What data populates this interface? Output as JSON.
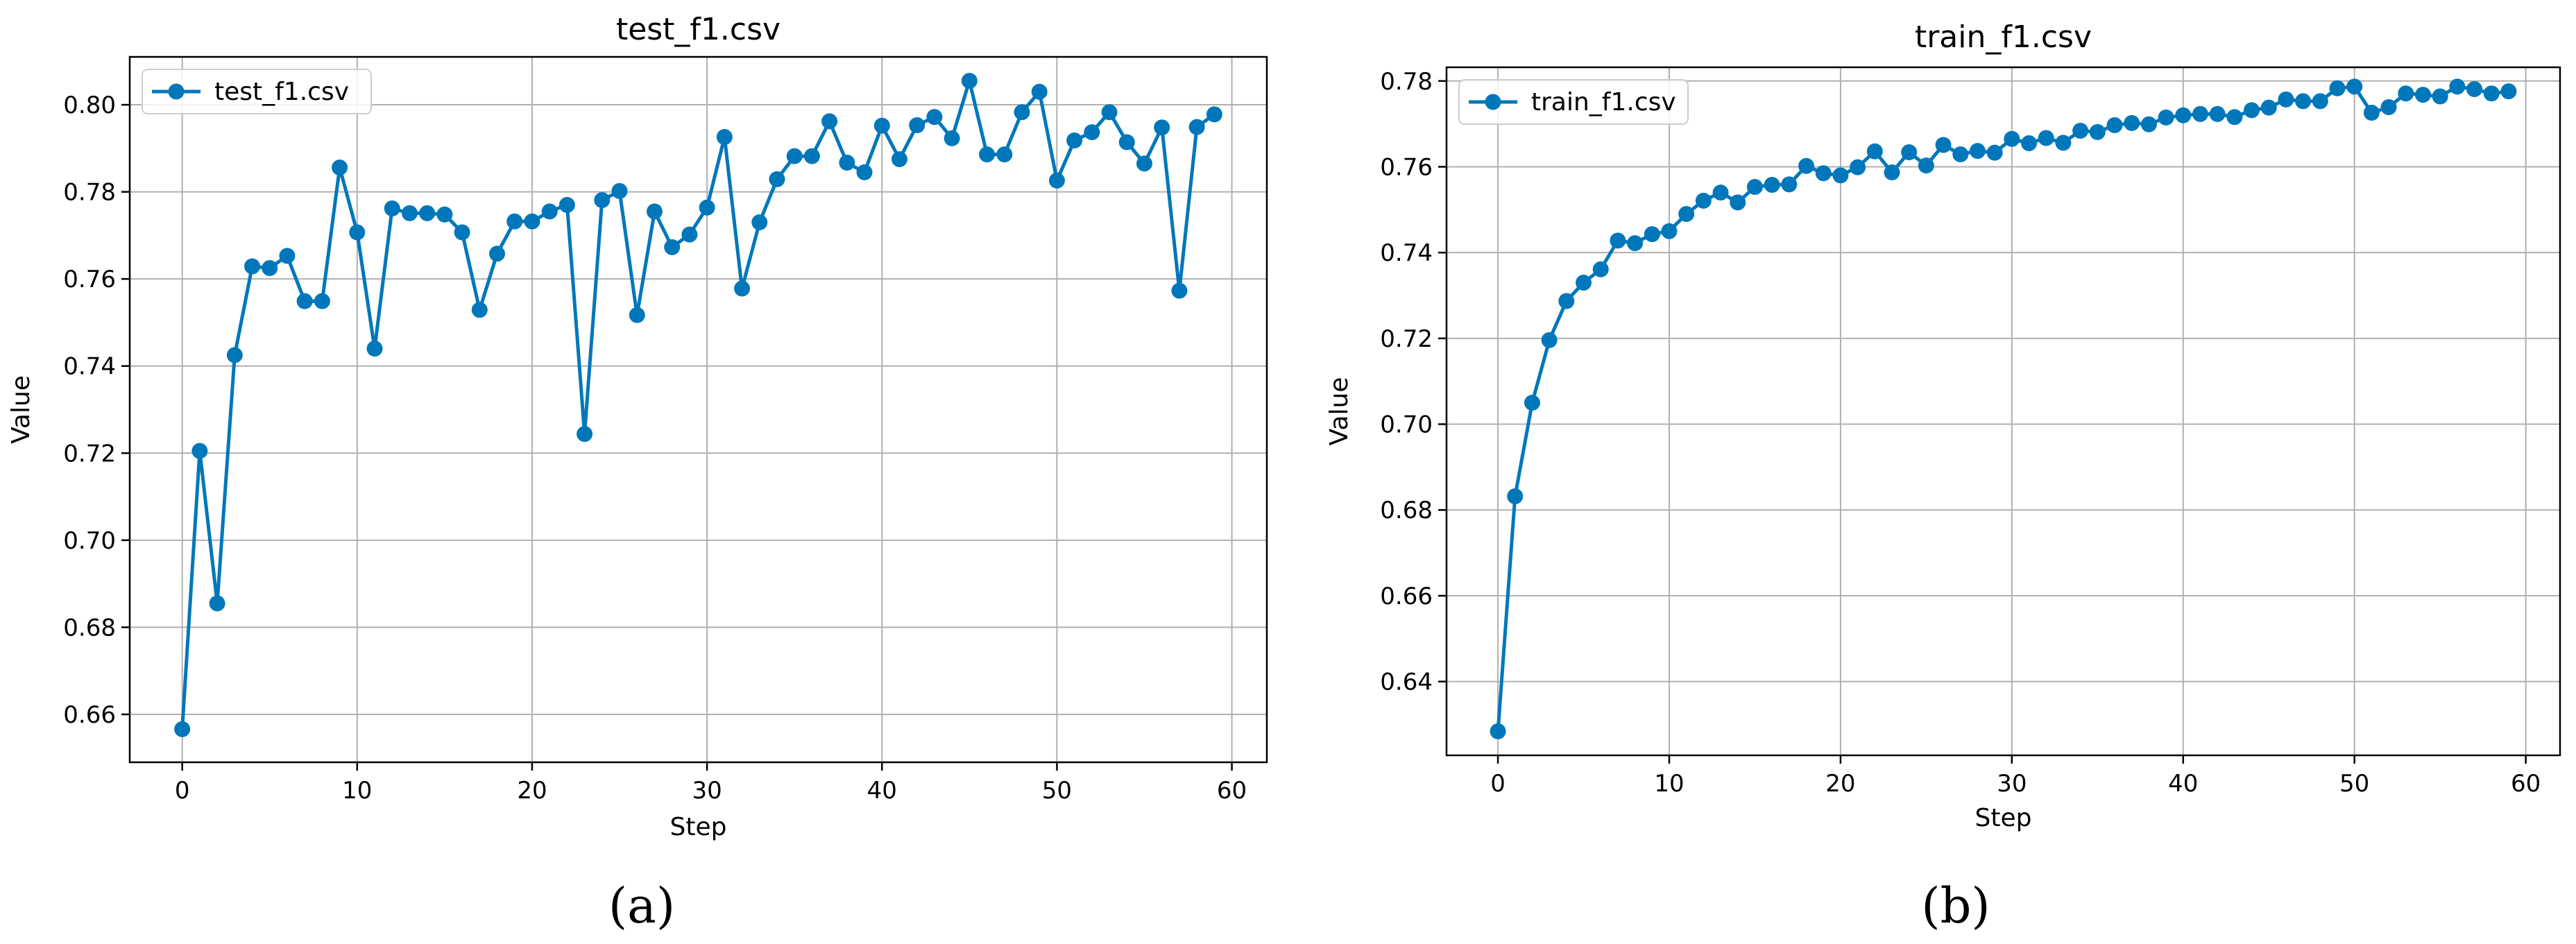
{
  "colors": {
    "series": "#0077bb",
    "grid": "#b0b0b0",
    "frame": "#000000"
  },
  "chart_data": [
    {
      "type": "line",
      "title": "test_f1.csv",
      "xlabel": "Step",
      "ylabel": "Value",
      "caption": "(a)",
      "grid": true,
      "legend_position": "top-left",
      "xlim": [
        -3,
        62
      ],
      "ylim": [
        0.649,
        0.811
      ],
      "xticks": [
        0,
        10,
        20,
        30,
        40,
        50,
        60
      ],
      "yticks": [
        0.66,
        0.68,
        0.7,
        0.72,
        0.74,
        0.76,
        0.78,
        0.8
      ],
      "ytick_labels": [
        "0.66",
        "0.68",
        "0.70",
        "0.72",
        "0.74",
        "0.76",
        "0.78",
        "0.80"
      ],
      "series": [
        {
          "name": "test_f1.csv",
          "x": [
            0,
            1,
            2,
            3,
            4,
            5,
            6,
            7,
            8,
            9,
            10,
            11,
            12,
            13,
            14,
            15,
            16,
            17,
            18,
            19,
            20,
            21,
            22,
            23,
            24,
            25,
            26,
            27,
            28,
            29,
            30,
            31,
            32,
            33,
            34,
            35,
            36,
            37,
            38,
            39,
            40,
            41,
            42,
            43,
            44,
            45,
            46,
            47,
            48,
            49,
            50,
            51,
            52,
            53,
            54,
            55,
            56,
            57,
            58,
            59
          ],
          "y": [
            0.6566,
            0.7205,
            0.6855,
            0.7425,
            0.7629,
            0.7625,
            0.7653,
            0.7549,
            0.7549,
            0.7856,
            0.7707,
            0.744,
            0.7762,
            0.7751,
            0.7751,
            0.7748,
            0.7707,
            0.7529,
            0.7658,
            0.7732,
            0.7732,
            0.7755,
            0.777,
            0.7244,
            0.7781,
            0.7802,
            0.7517,
            0.7755,
            0.7673,
            0.7702,
            0.7764,
            0.7926,
            0.7578,
            0.773,
            0.7829,
            0.7882,
            0.7882,
            0.7962,
            0.7867,
            0.7845,
            0.7952,
            0.7875,
            0.7953,
            0.7972,
            0.7923,
            0.8055,
            0.7886,
            0.7886,
            0.7983,
            0.803,
            0.7826,
            0.7918,
            0.7937,
            0.7983,
            0.7914,
            0.7865,
            0.7948,
            0.7573,
            0.7949,
            0.7978
          ]
        }
      ]
    },
    {
      "type": "line",
      "title": "train_f1.csv",
      "xlabel": "Step",
      "ylabel": "Value",
      "caption": "(b)",
      "grid": true,
      "legend_position": "top-left",
      "xlim": [
        -3,
        62
      ],
      "ylim": [
        0.6228,
        0.7832
      ],
      "xticks": [
        0,
        10,
        20,
        30,
        40,
        50,
        60
      ],
      "yticks": [
        0.64,
        0.66,
        0.68,
        0.7,
        0.72,
        0.74,
        0.76,
        0.78
      ],
      "ytick_labels": [
        "0.64",
        "0.66",
        "0.68",
        "0.70",
        "0.72",
        "0.74",
        "0.76",
        "0.78"
      ],
      "series": [
        {
          "name": "train_f1.csv",
          "x": [
            0,
            1,
            2,
            3,
            4,
            5,
            6,
            7,
            8,
            9,
            10,
            11,
            12,
            13,
            14,
            15,
            16,
            17,
            18,
            19,
            20,
            21,
            22,
            23,
            24,
            25,
            26,
            27,
            28,
            29,
            30,
            31,
            32,
            33,
            34,
            35,
            36,
            37,
            38,
            39,
            40,
            41,
            42,
            43,
            44,
            45,
            46,
            47,
            48,
            49,
            50,
            51,
            52,
            53,
            54,
            55,
            56,
            57,
            58,
            59
          ],
          "y": [
            0.6284,
            0.6832,
            0.705,
            0.7196,
            0.7287,
            0.733,
            0.7361,
            0.7428,
            0.7422,
            0.7443,
            0.745,
            0.749,
            0.7521,
            0.754,
            0.7517,
            0.7553,
            0.7558,
            0.7559,
            0.7602,
            0.7585,
            0.758,
            0.7599,
            0.7636,
            0.7587,
            0.7634,
            0.7603,
            0.7651,
            0.7629,
            0.7637,
            0.7633,
            0.7665,
            0.7655,
            0.7667,
            0.7656,
            0.7684,
            0.7681,
            0.7697,
            0.7702,
            0.7699,
            0.7715,
            0.772,
            0.7723,
            0.7723,
            0.7716,
            0.7732,
            0.7738,
            0.7757,
            0.7753,
            0.7753,
            0.7783,
            0.7787,
            0.7726,
            0.7739,
            0.7771,
            0.7768,
            0.7764,
            0.7787,
            0.7781,
            0.7771,
            0.7776
          ]
        }
      ]
    }
  ]
}
